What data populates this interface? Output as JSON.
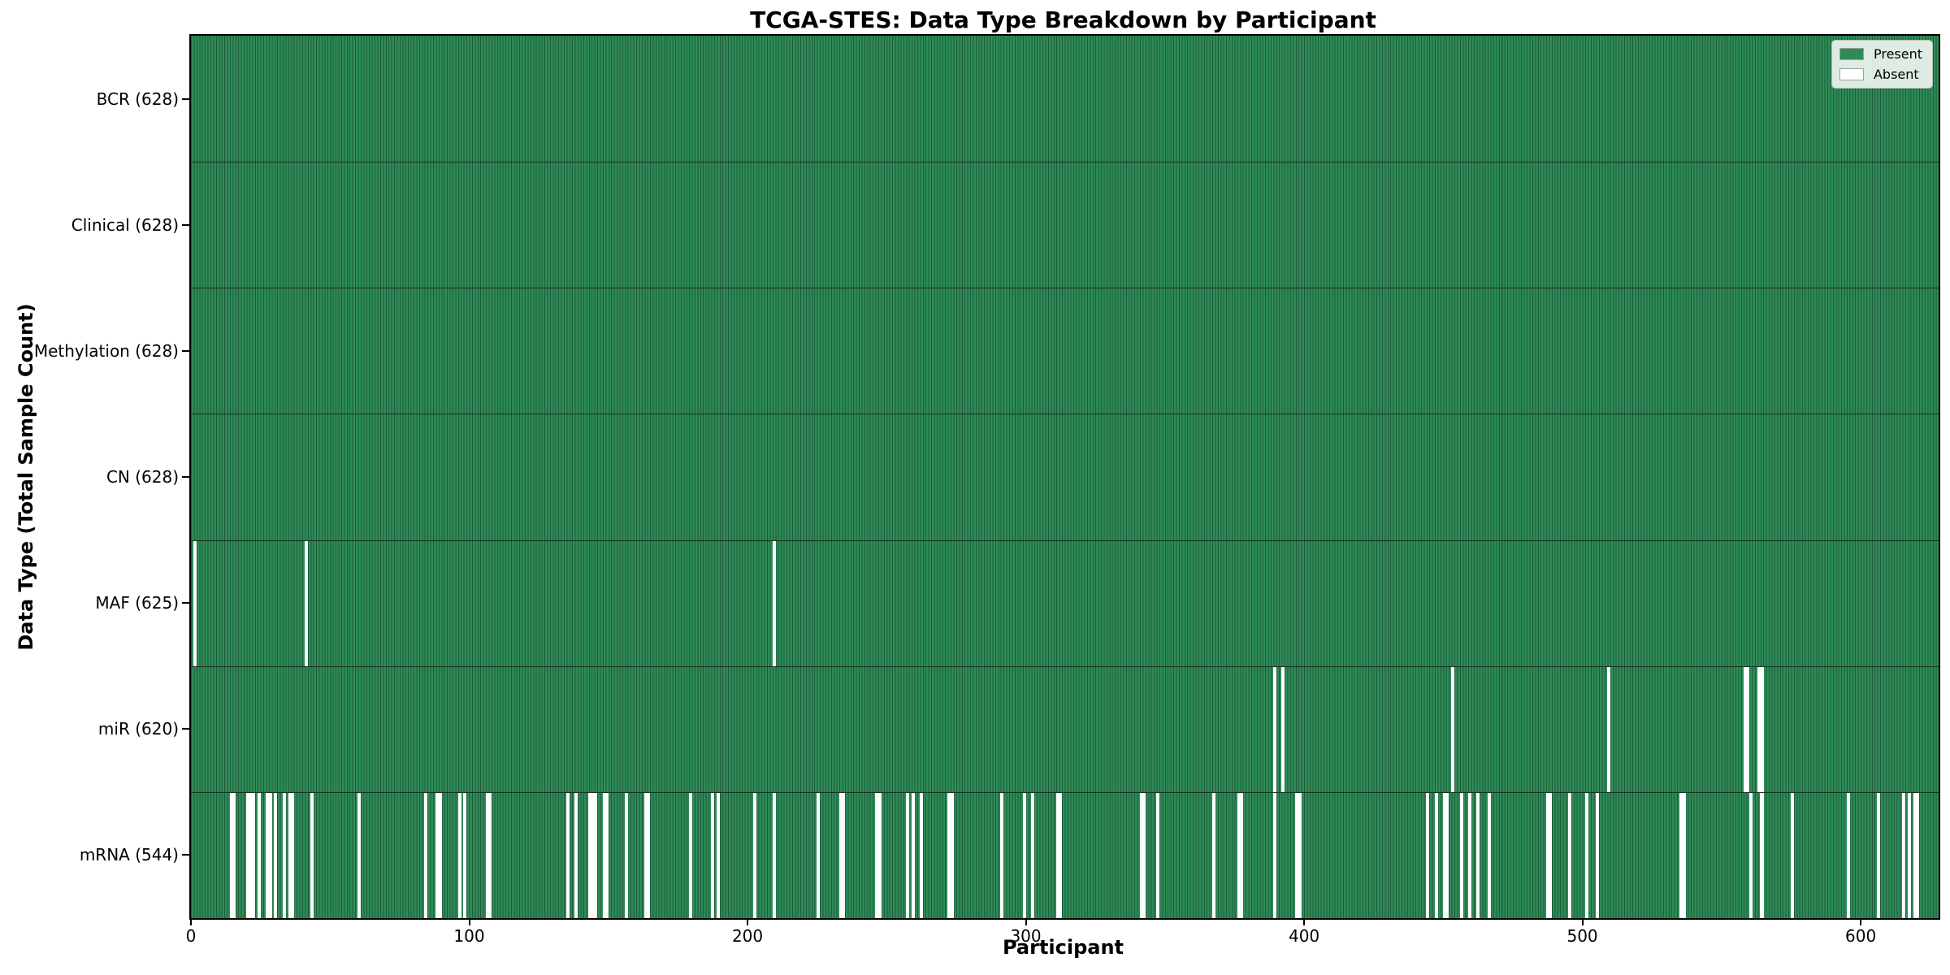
{
  "chart_data": {
    "type": "heatmap",
    "subtype": "presence-absence-matrix",
    "title": "TCGA-STES: Data Type Breakdown by Participant",
    "xlabel": "Participant",
    "ylabel": "Data Type (Total Sample Count)",
    "n_participants": 628,
    "x_ticks": [
      0,
      100,
      200,
      300,
      400,
      500,
      600
    ],
    "xlim": [
      0,
      628
    ],
    "grid": false,
    "legend_position": "upper right",
    "colors": {
      "present": "#2e8b57",
      "present_edge": "#1d5c39",
      "absent": "#ffffff",
      "plot_border": "#000000"
    },
    "legend": [
      {
        "label": "Present",
        "color": "#2e8b57"
      },
      {
        "label": "Absent",
        "color": "#ffffff"
      }
    ],
    "rows": [
      {
        "label": "BCR (628)",
        "name": "BCR",
        "present_count": 628,
        "absent_participants": []
      },
      {
        "label": "Clinical (628)",
        "name": "Clinical",
        "present_count": 628,
        "absent_participants": []
      },
      {
        "label": "Methylation (628)",
        "name": "Methylation",
        "present_count": 628,
        "absent_participants": []
      },
      {
        "label": "CN (628)",
        "name": "CN",
        "present_count": 628,
        "absent_participants": []
      },
      {
        "label": "MAF (625)",
        "name": "MAF",
        "present_count": 625,
        "absent_participants": [
          1,
          41,
          209
        ]
      },
      {
        "label": "miR (620)",
        "name": "miR",
        "present_count": 620,
        "absent_participants": [
          389,
          392,
          453,
          509,
          558,
          559,
          563,
          564
        ]
      },
      {
        "label": "mRNA (544)",
        "name": "mRNA",
        "present_count": 544,
        "absent_participants": [
          14,
          15,
          20,
          21,
          22,
          24,
          27,
          28,
          30,
          33,
          35,
          36,
          43,
          60,
          84,
          88,
          89,
          96,
          98,
          106,
          107,
          135,
          138,
          143,
          144,
          145,
          148,
          149,
          156,
          163,
          164,
          179,
          187,
          189,
          202,
          209,
          225,
          233,
          234,
          246,
          247,
          257,
          259,
          262,
          272,
          273,
          291,
          299,
          302,
          311,
          312,
          341,
          342,
          347,
          367,
          376,
          377,
          389,
          397,
          398,
          444,
          447,
          450,
          451,
          456,
          459,
          462,
          466,
          487,
          488,
          495,
          501,
          505,
          535,
          536,
          560,
          564,
          575,
          595,
          606,
          615,
          617,
          619,
          620
        ]
      }
    ]
  }
}
